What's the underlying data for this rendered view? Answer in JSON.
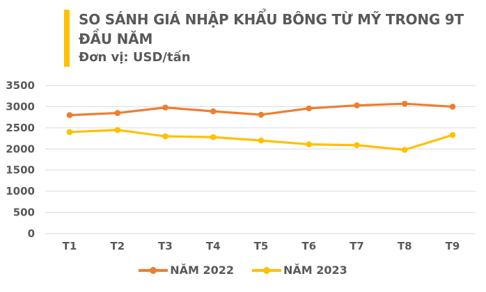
{
  "header": {
    "title_line1": "SO SÁNH GIÁ NHẬP KHẨU BÔNG TỪ MỸ TRONG 9T",
    "title_line2": "ĐẦU NĂM",
    "subtitle": "Đơn vị: USD/tấn",
    "accent_color": "#FFC000",
    "text_color": "#595959"
  },
  "chart_data": {
    "type": "line",
    "title": "SO SÁNH GIÁ NHẬP KHẨU BÔNG TỪ MỸ TRONG 9T ĐẦU NĂM",
    "ylabel": "USD/tấn",
    "xlabel": "",
    "categories": [
      "T1",
      "T2",
      "T3",
      "T4",
      "T5",
      "T6",
      "T7",
      "T8",
      "T9"
    ],
    "series": [
      {
        "name": "NĂM 2022",
        "color": "#ED7D31",
        "values": [
          2800,
          2850,
          2980,
          2890,
          2810,
          2960,
          3030,
          3070,
          3000
        ]
      },
      {
        "name": "NĂM 2023",
        "color": "#FFC000",
        "values": [
          2400,
          2450,
          2300,
          2280,
          2200,
          2110,
          2090,
          1980,
          2330
        ]
      }
    ],
    "ylim": [
      0,
      3500
    ],
    "yticks": [
      0,
      500,
      1000,
      1500,
      2000,
      2500,
      3000,
      3500
    ],
    "grid": true,
    "grid_color": "#D9D9D9",
    "axis_text_color": "#595959",
    "legend_position": "bottom"
  }
}
